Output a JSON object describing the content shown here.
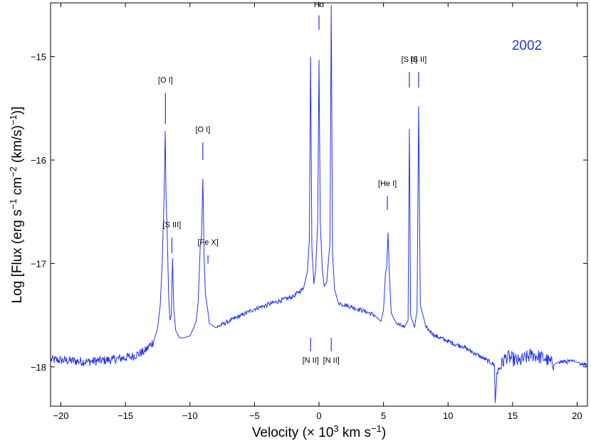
{
  "chart_data": {
    "type": "line",
    "title": "",
    "year_label": "2002",
    "xlabel_main": "Velocity (× 10",
    "xlabel_exp": "3",
    "xlabel_tail": " km s",
    "xlabel_exp2": "−1",
    "xlabel_close": ")",
    "ylabel_main": "Log [Flux (erg s",
    "ylabel_e1": "−1",
    "ylabel_mid1": " cm",
    "ylabel_e2": "−2",
    "ylabel_mid2": " (km/s)",
    "ylabel_e3": "−1",
    "ylabel_close": ")]",
    "xlim": [
      -20.8,
      20.8
    ],
    "ylim": [
      -18.38,
      -14.48
    ],
    "xticks": [
      -20,
      -15,
      -10,
      -5,
      0,
      5,
      10,
      15,
      20
    ],
    "xtick_labels": [
      "−20",
      "−15",
      "−10",
      "−5",
      "0",
      "5",
      "10",
      "15",
      "20"
    ],
    "yticks": [
      -15,
      -16,
      -17,
      -18
    ],
    "ytick_labels": [
      "−15",
      "−16",
      "−17",
      "−18"
    ],
    "grid": false,
    "line_color": "#2233ee",
    "series": [
      {
        "points": [
          [
            -20.8,
            -17.93
          ],
          [
            -18,
            -17.95
          ],
          [
            -16,
            -17.93
          ],
          [
            -14.5,
            -17.9
          ],
          [
            -13.5,
            -17.85
          ],
          [
            -12.8,
            -17.75
          ],
          [
            -12.5,
            -17.62
          ],
          [
            -12.3,
            -17.4
          ],
          [
            -12.15,
            -17.0
          ],
          [
            -12.05,
            -16.55
          ],
          [
            -12.0,
            -16.35
          ],
          [
            -11.92,
            -15.72
          ],
          [
            -11.85,
            -16.35
          ],
          [
            -11.75,
            -16.75
          ],
          [
            -11.65,
            -17.3
          ],
          [
            -11.55,
            -17.55
          ],
          [
            -11.45,
            -17.5
          ],
          [
            -11.35,
            -16.95
          ],
          [
            -11.25,
            -17.45
          ],
          [
            -11.1,
            -17.65
          ],
          [
            -10.8,
            -17.72
          ],
          [
            -10.5,
            -17.72
          ],
          [
            -10.0,
            -17.7
          ],
          [
            -9.7,
            -17.62
          ],
          [
            -9.5,
            -17.55
          ],
          [
            -9.35,
            -17.35
          ],
          [
            -9.2,
            -16.82
          ],
          [
            -9.1,
            -16.72
          ],
          [
            -9.0,
            -16.18
          ],
          [
            -8.9,
            -16.95
          ],
          [
            -8.8,
            -17.3
          ],
          [
            -8.65,
            -17.42
          ],
          [
            -8.5,
            -17.58
          ],
          [
            -8.0,
            -17.62
          ],
          [
            -7.0,
            -17.56
          ],
          [
            -6.0,
            -17.5
          ],
          [
            -5.0,
            -17.44
          ],
          [
            -4.0,
            -17.4
          ],
          [
            -3.0,
            -17.36
          ],
          [
            -2.0,
            -17.32
          ],
          [
            -1.2,
            -17.24
          ],
          [
            -0.9,
            -17.08
          ],
          [
            -0.75,
            -16.78
          ],
          [
            -0.65,
            -15.0
          ],
          [
            -0.55,
            -16.85
          ],
          [
            -0.4,
            -17.2
          ],
          [
            -0.25,
            -17.05
          ],
          [
            -0.1,
            -16.6
          ],
          [
            0.0,
            -15.03
          ],
          [
            0.1,
            -16.6
          ],
          [
            0.25,
            -17.05
          ],
          [
            0.4,
            -17.22
          ],
          [
            0.6,
            -17.18
          ],
          [
            0.85,
            -16.8
          ],
          [
            0.95,
            -14.5
          ],
          [
            1.05,
            -16.9
          ],
          [
            1.2,
            -17.25
          ],
          [
            1.5,
            -17.38
          ],
          [
            2.5,
            -17.42
          ],
          [
            3.5,
            -17.46
          ],
          [
            4.3,
            -17.5
          ],
          [
            4.8,
            -17.56
          ],
          [
            5.0,
            -17.45
          ],
          [
            5.15,
            -17.1
          ],
          [
            5.25,
            -17.02
          ],
          [
            5.35,
            -16.7
          ],
          [
            5.45,
            -17.1
          ],
          [
            5.6,
            -17.48
          ],
          [
            6.0,
            -17.58
          ],
          [
            6.6,
            -17.62
          ],
          [
            6.9,
            -17.55
          ],
          [
            7.0,
            -15.7
          ],
          [
            7.1,
            -17.5
          ],
          [
            7.4,
            -17.62
          ],
          [
            7.6,
            -17.45
          ],
          [
            7.72,
            -15.48
          ],
          [
            7.85,
            -17.4
          ],
          [
            8.3,
            -17.62
          ],
          [
            9.0,
            -17.7
          ],
          [
            9.8,
            -17.74
          ],
          [
            10.5,
            -17.78
          ],
          [
            11.1,
            -17.8
          ],
          [
            13.6,
            -17.98
          ],
          [
            13.65,
            -18.35
          ],
          [
            13.8,
            -18.05
          ],
          [
            14.5,
            -17.9
          ],
          [
            15.5,
            -17.95
          ],
          [
            16.5,
            -17.88
          ],
          [
            17.5,
            -17.92
          ],
          [
            18.2,
            -17.98
          ],
          [
            18.6,
            -17.95
          ],
          [
            19.8,
            -17.95
          ],
          [
            20.2,
            -17.96
          ],
          [
            20.8,
            -17.98
          ]
        ]
      }
    ],
    "annotations": [
      {
        "label": "[O I]",
        "x": -11.9,
        "y1": -15.35,
        "y2": -15.65,
        "label_y": -15.25
      },
      {
        "label": "[S III]",
        "x": -11.4,
        "y1": -16.75,
        "y2": -16.9,
        "label_y": -16.65
      },
      {
        "label": "[O I]",
        "x": -9.0,
        "y1": -15.83,
        "y2": -16.0,
        "label_y": -15.73
      },
      {
        "label": "[Fe X]",
        "x": -8.6,
        "y1": -16.92,
        "y2": -17.0,
        "label_y": -16.82
      },
      {
        "label": "Hα",
        "x": 0.0,
        "y1": -14.6,
        "y2": -14.74,
        "label_y": -14.52
      },
      {
        "label": "[N II]",
        "x": -0.65,
        "y1": -17.72,
        "y2": -17.85,
        "label_y": -17.96
      },
      {
        "label": "[N II]",
        "x": 0.95,
        "y1": -17.72,
        "y2": -17.85,
        "label_y": -17.96
      },
      {
        "label": "[He I]",
        "x": 5.3,
        "y1": -16.35,
        "y2": -16.48,
        "label_y": -16.25
      },
      {
        "label": "[S II]",
        "x": 7.0,
        "y1": -15.15,
        "y2": -15.3,
        "label_y": -15.05
      },
      {
        "label": "[S II]",
        "x": 7.72,
        "y1": -15.15,
        "y2": -15.3,
        "label_y": -15.05
      }
    ]
  }
}
